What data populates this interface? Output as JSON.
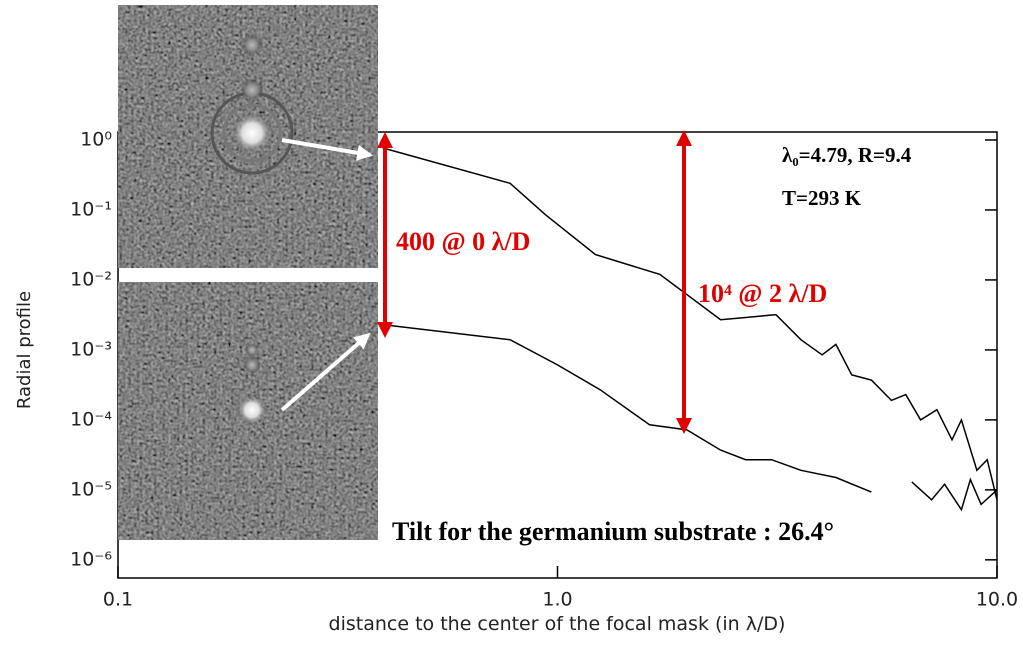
{
  "chart_data": {
    "type": "line",
    "x_label": "distance to the center of the focal mask (in λ/D)",
    "y_label": "Radial profile",
    "log_x": true,
    "log_y": true,
    "xlim": [
      0.1,
      10
    ],
    "ylim": [
      5.5e-07,
      1.3
    ],
    "xticks": [
      0.1,
      {
        "value": 1,
        "label": "1.0"
      },
      {
        "value": 10,
        "label": "10.0"
      }
    ],
    "yticks": [
      {
        "value": 1,
        "label": "10⁰"
      },
      {
        "value": 0.1,
        "label": "10⁻¹"
      },
      {
        "value": 0.01,
        "label": "10⁻²"
      },
      {
        "value": 0.001,
        "label": "10⁻³"
      },
      {
        "value": 0.0001,
        "label": "10⁻⁴"
      },
      {
        "value": 1e-05,
        "label": "10⁻⁵"
      },
      {
        "value": 1e-06,
        "label": "10⁻⁶"
      }
    ],
    "series": [
      {
        "color": "#000000",
        "x": [
          0.4,
          0.78,
          0.94,
          1.22,
          1.71,
          2.35,
          2.68,
          3.14,
          3.58,
          4.0,
          4.3,
          4.67,
          5.18,
          5.75,
          6.2,
          6.7,
          7.3,
          7.9,
          8.3,
          9.0,
          9.5,
          10.0
        ],
        "values": [
          0.77,
          0.24,
          0.085,
          0.023,
          0.012,
          0.0027,
          0.0029,
          0.0032,
          0.0014,
          0.00085,
          0.0012,
          0.00044,
          0.00037,
          0.00019,
          0.00023,
          0.0001,
          0.00014,
          5.2e-05,
          0.0001,
          1.9e-05,
          2.7e-05,
          7.2e-06
        ]
      },
      {
        "color": "#000000",
        "x": [
          0.4,
          0.78,
          1.0,
          1.25,
          1.62,
          1.97,
          2.35,
          2.68,
          3.07,
          3.58,
          4.3,
          5.18,
          5.8,
          6.4,
          7.1,
          7.6,
          8.3,
          8.7,
          9.2,
          10.0
        ],
        "values": [
          0.0023,
          0.0014,
          0.00061,
          0.00027,
          8.5e-05,
          7.2e-05,
          3.7e-05,
          2.7e-05,
          2.7e-05,
          1.9e-05,
          1.5e-05,
          9.3e-06,
          null,
          1.3e-05,
          7.2e-06,
          1.2e-05,
          5.2e-06,
          1.4e-05,
          6.2e-06,
          1e-05
        ]
      }
    ],
    "annotations": [
      "λ₀=4.79, R=9.4",
      "T=293 K",
      "400 @ 0 λ/D",
      "10⁴ @ 2 λ/D",
      "Tilt for the germanium substrate : 26.4°"
    ]
  }
}
